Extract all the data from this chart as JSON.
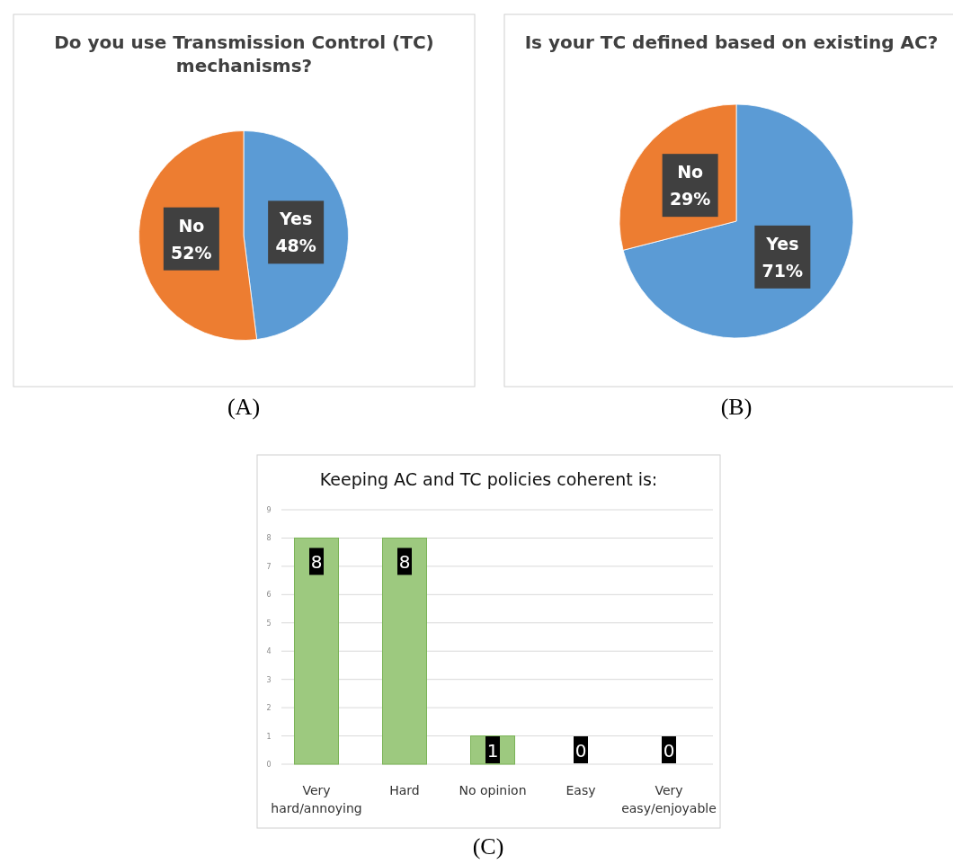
{
  "chart_data": [
    {
      "type": "pie",
      "title": "Do you use Transmission Control (TC) mechanisms?",
      "categories": [
        "Yes",
        "No"
      ],
      "values": [
        48,
        52
      ],
      "colors": [
        "#5b9bd5",
        "#ed7d31"
      ],
      "value_labels": [
        "48%",
        "52%"
      ],
      "annotations": [
        "(A)"
      ]
    },
    {
      "type": "pie",
      "title": "Is your TC defined based on existing AC?",
      "categories": [
        "Yes",
        "No"
      ],
      "values": [
        71,
        29
      ],
      "colors": [
        "#5b9bd5",
        "#ed7d31"
      ],
      "value_labels": [
        "71%",
        "29%"
      ],
      "annotations": [
        "(B)"
      ]
    },
    {
      "type": "bar",
      "title": "Keeping AC and TC policies coherent is:",
      "categories": [
        "Very hard/annoying",
        "Hard",
        "No opinion",
        "Easy",
        "Very easy/enjoyable"
      ],
      "values": [
        8,
        8,
        1,
        0,
        0
      ],
      "color": "#9dc97f",
      "ylim": [
        0,
        9
      ],
      "yticks": [
        0,
        1,
        2,
        3,
        4,
        5,
        6,
        7,
        8,
        9
      ],
      "grid": "y",
      "data_labels": true,
      "annotations": [
        "(C)"
      ]
    }
  ]
}
